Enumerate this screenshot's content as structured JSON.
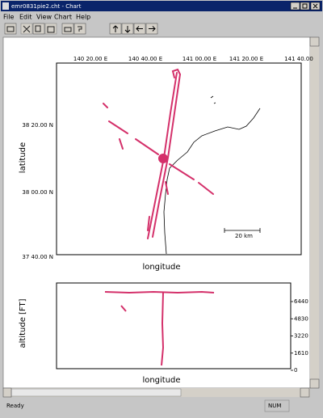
{
  "window": {
    "title": "emr0831pie2.cht - Chart"
  },
  "menu": [
    "File",
    "Edit",
    "View",
    "Chart",
    "Help"
  ],
  "map": {
    "x_labels": [
      "140 20.00 E",
      "140 40.00 E",
      "141 00.00 E",
      "141 20.00 E",
      "141 40.00"
    ],
    "y_labels": [
      "38 20.00 N",
      "38 00.00 N",
      "37 40.00 N"
    ],
    "x_title": "longitude",
    "y_title": "latitude",
    "scale_label": "20 km"
  },
  "profile": {
    "y_ticks": [
      6440,
      4830,
      3220,
      1610,
      0
    ],
    "y_title": "altitude [FT]",
    "x_title": "longitude"
  },
  "status": {
    "text": "Ready",
    "indicator": "NUM"
  }
}
